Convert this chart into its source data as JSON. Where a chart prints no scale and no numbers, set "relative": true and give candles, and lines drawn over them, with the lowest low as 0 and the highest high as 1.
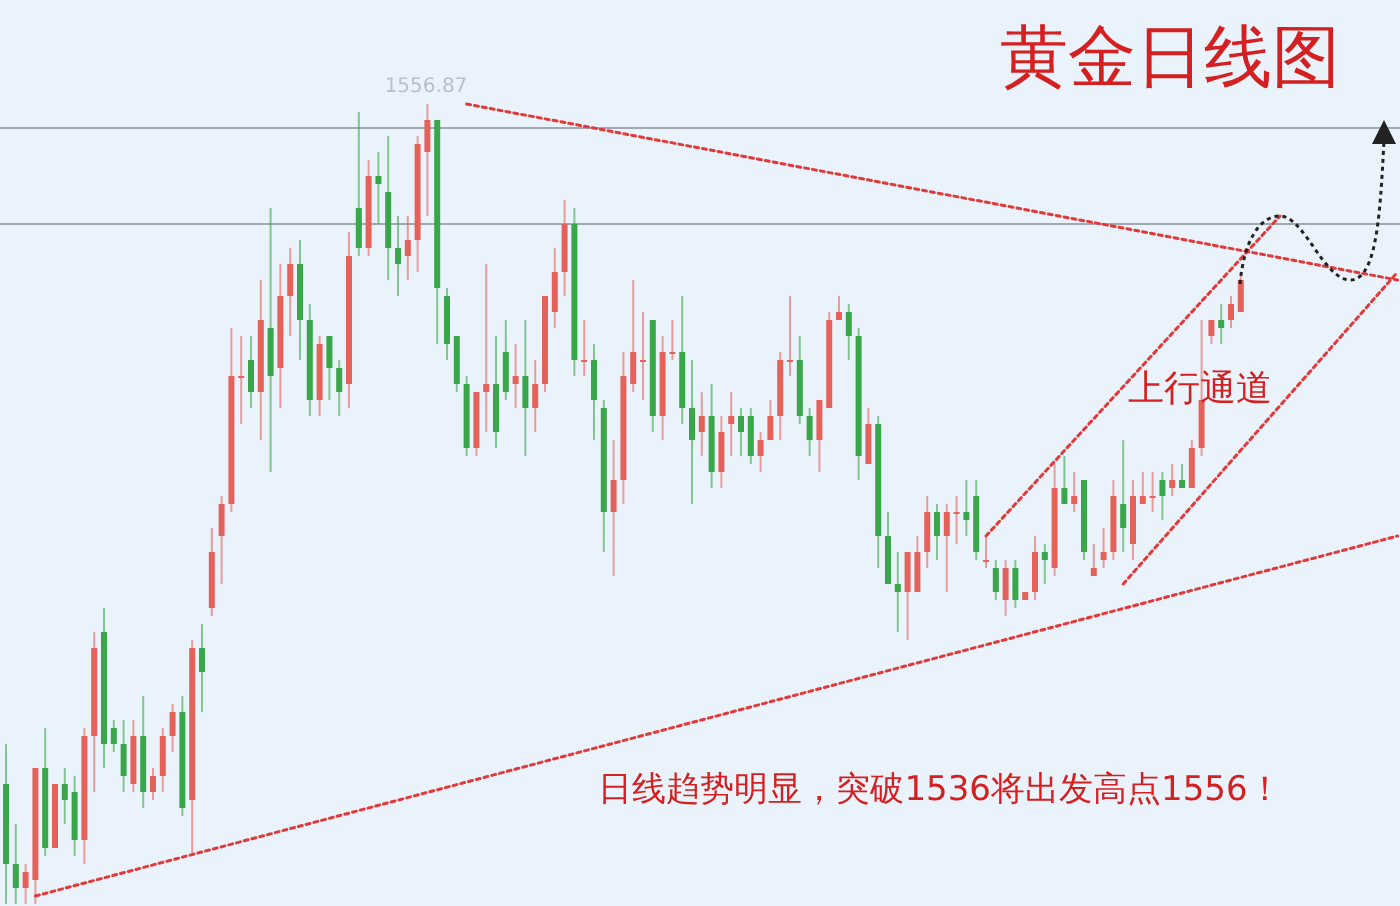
{
  "chart_data": {
    "type": "candlestick",
    "title": "黄金日线图",
    "relative": true,
    "grid": false,
    "annotations": [
      {
        "text": "1556.87",
        "y": 1
      },
      "上行通道",
      "日线趋势明显，突破1536将出发高点1556！"
    ],
    "ref_lines": [
      {
        "axis": "y",
        "value": 0.97,
        "color": "#a0a8b0"
      },
      {
        "axis": "y",
        "value": 0.85,
        "color": "#a0a8b0"
      }
    ],
    "categories": [
      null,
      null,
      null,
      null,
      null,
      null,
      null,
      null,
      null,
      null,
      null,
      null,
      null,
      null,
      null,
      null,
      null,
      null,
      null,
      null,
      null,
      null,
      null,
      null,
      null,
      null,
      null,
      null,
      null,
      null,
      null,
      null,
      null,
      null,
      null,
      null,
      null,
      null,
      null,
      null,
      null,
      null,
      null,
      null,
      null,
      null,
      null,
      null,
      null,
      null,
      null,
      null,
      null,
      null,
      null,
      null,
      null,
      null,
      null,
      null,
      null,
      null,
      null,
      null,
      null,
      null,
      null,
      null,
      null,
      null,
      null,
      null,
      null,
      null,
      null,
      null,
      null,
      null,
      null,
      null,
      null,
      null,
      null,
      null,
      null,
      null,
      null,
      null,
      null,
      null,
      null,
      null,
      null,
      null,
      null,
      null,
      null,
      null,
      null,
      null,
      null,
      null,
      null,
      null,
      null,
      null,
      null,
      null,
      null,
      null,
      null,
      null,
      null,
      null,
      null,
      null,
      null,
      null,
      null,
      null,
      null,
      null,
      null,
      null,
      null,
      null,
      null,
      null,
      null,
      null,
      null,
      null,
      null,
      null,
      null,
      null,
      null,
      null,
      null,
      null,
      null,
      null,
      null
    ],
    "ohlc": [
      [
        0.15,
        0.2,
        0,
        0.05
      ],
      [
        0.05,
        0.1,
        0,
        0.02
      ],
      [
        0.02,
        0.05,
        0,
        0.04
      ],
      [
        0.03,
        0.17,
        0,
        0.17
      ],
      [
        0.17,
        0.22,
        0.06,
        0.07
      ],
      [
        0.07,
        0.15,
        0.07,
        0.15
      ],
      [
        0.15,
        0.17,
        0.1,
        0.13
      ],
      [
        0.14,
        0.16,
        0.06,
        0.08
      ],
      [
        0.08,
        0.22,
        0.05,
        0.21
      ],
      [
        0.21,
        0.34,
        0.14,
        0.32
      ],
      [
        0.34,
        0.37,
        0.17,
        0.2
      ],
      [
        0.22,
        0.23,
        0.19,
        0.2
      ],
      [
        0.2,
        0.23,
        0.14,
        0.16
      ],
      [
        0.15,
        0.23,
        0.14,
        0.21
      ],
      [
        0.21,
        0.26,
        0.12,
        0.14
      ],
      [
        0.14,
        0.17,
        0.13,
        0.16
      ],
      [
        0.16,
        0.22,
        0.14,
        0.21
      ],
      [
        0.21,
        0.25,
        0.19,
        0.24
      ],
      [
        0.24,
        0.26,
        0.11,
        0.12
      ],
      [
        0.13,
        0.33,
        0.06,
        0.32
      ],
      [
        0.32,
        0.35,
        0.24,
        0.29
      ],
      [
        0.37,
        0.47,
        0.36,
        0.44
      ],
      [
        0.46,
        0.51,
        0.4,
        0.5
      ],
      [
        0.5,
        0.72,
        0.49,
        0.66
      ],
      [
        0.66,
        0.71,
        0.6,
        0.66
      ],
      [
        0.68,
        0.71,
        0.62,
        0.64
      ],
      [
        0.64,
        0.78,
        0.58,
        0.73
      ],
      [
        0.72,
        0.87,
        0.54,
        0.66
      ],
      [
        0.67,
        0.8,
        0.62,
        0.76
      ],
      [
        0.76,
        0.82,
        0.71,
        0.8
      ],
      [
        0.8,
        0.83,
        0.68,
        0.73
      ],
      [
        0.73,
        0.75,
        0.61,
        0.63
      ],
      [
        0.63,
        0.71,
        0.61,
        0.7
      ],
      [
        0.71,
        0.71,
        0.63,
        0.67
      ],
      [
        0.67,
        0.68,
        0.61,
        0.64
      ],
      [
        0.65,
        0.84,
        0.62,
        0.81
      ],
      [
        0.87,
        0.99,
        0.81,
        0.82
      ],
      [
        0.82,
        0.93,
        0.81,
        0.91
      ],
      [
        0.91,
        0.94,
        0.85,
        0.9
      ],
      [
        0.89,
        0.96,
        0.78,
        0.82
      ],
      [
        0.82,
        0.86,
        0.76,
        0.8
      ],
      [
        0.81,
        0.86,
        0.78,
        0.83
      ],
      [
        0.83,
        0.96,
        0.79,
        0.95
      ],
      [
        0.94,
        1,
        0.86,
        0.98
      ],
      [
        0.98,
        0.98,
        0.7,
        0.77
      ],
      [
        0.76,
        0.77,
        0.68,
        0.7
      ],
      [
        0.71,
        0.71,
        0.64,
        0.65
      ],
      [
        0.65,
        0.66,
        0.56,
        0.57
      ],
      [
        0.57,
        0.64,
        0.56,
        0.64
      ],
      [
        0.64,
        0.8,
        0.59,
        0.65
      ],
      [
        0.65,
        0.71,
        0.57,
        0.59
      ],
      [
        0.69,
        0.73,
        0.63,
        0.64
      ],
      [
        0.65,
        0.7,
        0.62,
        0.66
      ],
      [
        0.66,
        0.73,
        0.56,
        0.62
      ],
      [
        0.62,
        0.68,
        0.59,
        0.65
      ],
      [
        0.65,
        0.76,
        0.64,
        0.76
      ],
      [
        0.74,
        0.82,
        0.72,
        0.79
      ],
      [
        0.79,
        0.88,
        0.76,
        0.85
      ],
      [
        0.85,
        0.87,
        0.66,
        0.68
      ],
      [
        0.68,
        0.73,
        0.66,
        0.68
      ],
      [
        0.68,
        0.7,
        0.58,
        0.63
      ],
      [
        0.62,
        0.63,
        0.44,
        0.49
      ],
      [
        0.49,
        0.58,
        0.41,
        0.53
      ],
      [
        0.53,
        0.69,
        0.5,
        0.66
      ],
      [
        0.65,
        0.78,
        0.64,
        0.69
      ],
      [
        0.68,
        0.74,
        0.63,
        0.68
      ],
      [
        0.73,
        0.73,
        0.59,
        0.61
      ],
      [
        0.61,
        0.71,
        0.58,
        0.69
      ],
      [
        0.69,
        0.73,
        0.68,
        0.69
      ],
      [
        0.69,
        0.76,
        0.6,
        0.62
      ],
      [
        0.62,
        0.68,
        0.5,
        0.58
      ],
      [
        0.59,
        0.64,
        0.56,
        0.61
      ],
      [
        0.61,
        0.65,
        0.52,
        0.54
      ],
      [
        0.54,
        0.61,
        0.52,
        0.59
      ],
      [
        0.6,
        0.64,
        0.56,
        0.61
      ],
      [
        0.61,
        0.62,
        0.56,
        0.59
      ],
      [
        0.61,
        0.62,
        0.55,
        0.56
      ],
      [
        0.56,
        0.59,
        0.54,
        0.58
      ],
      [
        0.58,
        0.63,
        0.58,
        0.61
      ],
      [
        0.61,
        0.69,
        0.58,
        0.68
      ],
      [
        0.68,
        0.76,
        0.66,
        0.68
      ],
      [
        0.68,
        0.71,
        0.6,
        0.61
      ],
      [
        0.61,
        0.62,
        0.56,
        0.58
      ],
      [
        0.58,
        0.63,
        0.54,
        0.63
      ],
      [
        0.62,
        0.74,
        0.62,
        0.73
      ],
      [
        0.73,
        0.76,
        0.73,
        0.74
      ],
      [
        0.74,
        0.75,
        0.68,
        0.71
      ],
      [
        0.71,
        0.72,
        0.53,
        0.56
      ],
      [
        0.55,
        0.62,
        0.55,
        0.6
      ],
      [
        0.6,
        0.61,
        0.42,
        0.46
      ],
      [
        0.46,
        0.49,
        0.4,
        0.4
      ],
      [
        0.4,
        0.44,
        0.34,
        0.39
      ],
      [
        0.39,
        0.44,
        0.33,
        0.44
      ],
      [
        0.39,
        0.46,
        0.39,
        0.44
      ],
      [
        0.44,
        0.51,
        0.42,
        0.49
      ],
      [
        0.49,
        0.5,
        0.43,
        0.46
      ],
      [
        0.46,
        0.5,
        0.39,
        0.49
      ],
      [
        0.49,
        0.51,
        0.45,
        0.49
      ],
      [
        0.49,
        0.53,
        0.46,
        0.48
      ],
      [
        0.51,
        0.53,
        0.43,
        0.44
      ],
      [
        0.43,
        0.46,
        0.42,
        0.43
      ],
      [
        0.42,
        0.43,
        0.38,
        0.39
      ],
      [
        0.38,
        0.43,
        0.36,
        0.42
      ],
      [
        0.42,
        0.43,
        0.37,
        0.38
      ],
      [
        0.38,
        0.39,
        0.38,
        0.39
      ],
      [
        0.39,
        0.46,
        0.38,
        0.44
      ],
      [
        0.44,
        0.45,
        0.4,
        0.43
      ],
      [
        0.42,
        0.55,
        0.41,
        0.52
      ],
      [
        0.52,
        0.56,
        0.5,
        0.5
      ],
      [
        0.5,
        0.54,
        0.49,
        0.51
      ],
      [
        0.53,
        0.53,
        0.43,
        0.44
      ],
      [
        0.41,
        0.45,
        0.41,
        0.42
      ],
      [
        0.43,
        0.47,
        0.42,
        0.44
      ],
      [
        0.44,
        0.53,
        0.43,
        0.51
      ],
      [
        0.5,
        0.58,
        0.44,
        0.47
      ],
      [
        0.45,
        0.53,
        0.43,
        0.51
      ],
      [
        0.5,
        0.54,
        0.5,
        0.51
      ],
      [
        0.51,
        0.54,
        0.49,
        0.51
      ],
      [
        0.53,
        0.54,
        0.48,
        0.51
      ],
      [
        0.52,
        0.55,
        0.51,
        0.53
      ],
      [
        0.53,
        0.55,
        0.52,
        0.52
      ],
      [
        0.52,
        0.58,
        0.52,
        0.57
      ],
      [
        0.57,
        0.73,
        0.56,
        0.63
      ],
      [
        0.71,
        0.73,
        0.7,
        0.73
      ],
      [
        0.73,
        0.75,
        0.7,
        0.72
      ],
      [
        0.73,
        0.76,
        0.72,
        0.75
      ],
      [
        0.74,
        0.79,
        0.74,
        0.78
      ],
      null,
      null,
      null,
      null,
      null,
      null,
      null,
      null,
      null,
      null,
      null,
      null,
      null,
      null,
      null,
      null
    ],
    "series": [
      {
        "type": "line",
        "color": "#e03a3a",
        "line_style": "dotted",
        "marker": "none",
        "values": [
          null,
          null,
          null,
          null,
          null,
          null,
          null,
          null,
          null,
          null,
          null,
          null,
          null,
          null,
          null,
          null,
          null,
          null,
          null,
          null,
          null,
          null,
          null,
          null,
          null,
          null,
          null,
          null,
          null,
          null,
          null,
          null,
          null,
          null,
          null,
          null,
          null,
          null,
          null,
          null,
          null,
          null,
          null,
          null,
          null,
          null,
          null,
          1,
          null,
          null,
          null,
          null,
          null,
          null,
          null,
          null,
          null,
          null,
          null,
          null,
          null,
          null,
          null,
          null,
          null,
          null,
          null,
          null,
          null,
          null,
          null,
          null,
          null,
          null,
          null,
          null,
          null,
          null,
          null,
          null,
          null,
          null,
          null,
          null,
          null,
          null,
          null,
          null,
          null,
          null,
          null,
          null,
          null,
          null,
          null,
          null,
          null,
          null,
          null,
          null,
          null,
          null,
          null,
          null,
          null,
          null,
          null,
          null,
          null,
          null,
          null,
          null,
          null,
          null,
          null,
          null,
          null,
          null,
          null,
          null,
          null,
          null,
          null,
          null,
          null,
          null,
          null,
          null,
          null,
          null,
          null,
          null,
          null,
          null,
          null,
          null,
          null,
          null,
          null,
          null,
          null,
          null,
          0.78
        ]
      },
      {
        "type": "line",
        "color": "#e03a3a",
        "line_style": "dotted",
        "marker": "none",
        "values": [
          null,
          null,
          null,
          0.01,
          null,
          null,
          null,
          null,
          null,
          null,
          null,
          null,
          null,
          null,
          null,
          null,
          null,
          null,
          null,
          null,
          null,
          null,
          null,
          null,
          null,
          null,
          null,
          null,
          null,
          null,
          null,
          null,
          null,
          null,
          null,
          null,
          null,
          null,
          null,
          null,
          null,
          null,
          null,
          null,
          null,
          null,
          null,
          null,
          null,
          null,
          null,
          null,
          null,
          null,
          null,
          null,
          null,
          null,
          null,
          null,
          null,
          null,
          null,
          null,
          null,
          null,
          null,
          null,
          null,
          null,
          null,
          null,
          null,
          null,
          null,
          null,
          null,
          null,
          null,
          null,
          null,
          null,
          null,
          null,
          null,
          null,
          null,
          null,
          null,
          null,
          null,
          null,
          null,
          null,
          null,
          null,
          null,
          null,
          null,
          null,
          null,
          null,
          null,
          null,
          null,
          null,
          null,
          null,
          null,
          null,
          null,
          null,
          null,
          null,
          null,
          null,
          null,
          null,
          null,
          null,
          null,
          null,
          null,
          null,
          null,
          null,
          null,
          null,
          null,
          null,
          null,
          null,
          null,
          null,
          null,
          null,
          null,
          null,
          null,
          null,
          null,
          null,
          0.46
        ]
      },
      {
        "type": "line",
        "color": "#e03a3a",
        "line_style": "dotted",
        "marker": "none",
        "values": [
          null,
          null,
          null,
          null,
          null,
          null,
          null,
          null,
          null,
          null,
          null,
          null,
          null,
          null,
          null,
          null,
          null,
          null,
          null,
          null,
          null,
          null,
          null,
          null,
          null,
          null,
          null,
          null,
          null,
          null,
          null,
          null,
          null,
          null,
          null,
          null,
          null,
          null,
          null,
          null,
          null,
          null,
          null,
          null,
          null,
          null,
          null,
          null,
          null,
          null,
          null,
          null,
          null,
          null,
          null,
          null,
          null,
          null,
          null,
          null,
          null,
          null,
          null,
          null,
          null,
          null,
          null,
          null,
          null,
          null,
          null,
          null,
          null,
          null,
          null,
          null,
          null,
          null,
          null,
          null,
          null,
          null,
          null,
          null,
          null,
          null,
          null,
          null,
          null,
          null,
          null,
          null,
          null,
          null,
          null,
          null,
          null,
          null,
          null,
          null,
          0.46,
          null,
          null,
          null,
          null,
          null,
          null,
          null,
          null,
          null,
          null,
          null,
          null,
          null,
          null,
          null,
          null,
          null,
          null,
          null,
          null,
          null,
          null,
          null,
          null,
          null,
          null,
          null,
          null,
          null,
          0.86,
          null,
          null,
          null,
          null,
          null,
          null,
          null,
          null,
          null,
          null,
          null,
          null
        ]
      },
      {
        "type": "line",
        "color": "#e03a3a",
        "line_style": "dotted",
        "marker": "none",
        "values": [
          null,
          null,
          null,
          null,
          null,
          null,
          null,
          null,
          null,
          null,
          null,
          null,
          null,
          null,
          null,
          null,
          null,
          null,
          null,
          null,
          null,
          null,
          null,
          null,
          null,
          null,
          null,
          null,
          null,
          null,
          null,
          null,
          null,
          null,
          null,
          null,
          null,
          null,
          null,
          null,
          null,
          null,
          null,
          null,
          null,
          null,
          null,
          null,
          null,
          null,
          null,
          null,
          null,
          null,
          null,
          null,
          null,
          null,
          null,
          null,
          null,
          null,
          null,
          null,
          null,
          null,
          null,
          null,
          null,
          null,
          null,
          null,
          null,
          null,
          null,
          null,
          null,
          null,
          null,
          null,
          null,
          null,
          null,
          null,
          null,
          null,
          null,
          null,
          null,
          null,
          null,
          null,
          null,
          null,
          null,
          null,
          null,
          null,
          null,
          null,
          null,
          null,
          null,
          null,
          null,
          null,
          null,
          null,
          null,
          null,
          null,
          null,
          null,
          null,
          0.4,
          null,
          null,
          null,
          null,
          null,
          null,
          null,
          null,
          null,
          null,
          null,
          null,
          null,
          null,
          null,
          null,
          null,
          null,
          null,
          null,
          null,
          null,
          null,
          null,
          null,
          null,
          null,
          0.79
        ]
      }
    ]
  }
}
